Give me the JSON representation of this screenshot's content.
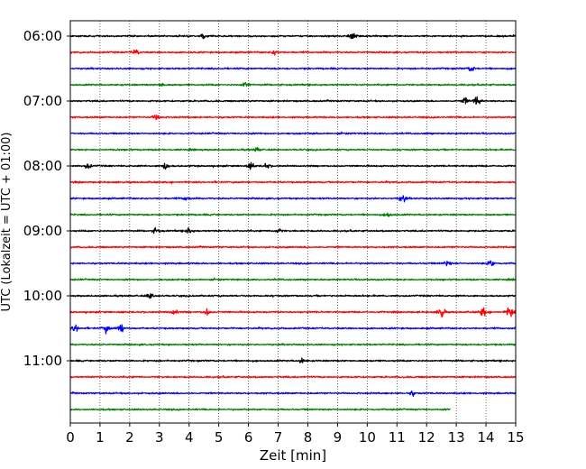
{
  "chart_data": {
    "type": "line",
    "xlabel": "Zeit  [min]",
    "ylabel": "UTC (Lokalzeit = UTC + 01:00)",
    "xlim": [
      0,
      15
    ],
    "x_ticks": [
      "0",
      "1",
      "2",
      "3",
      "4",
      "5",
      "6",
      "7",
      "8",
      "9",
      "10",
      "11",
      "12",
      "13",
      "14",
      "15"
    ],
    "y_tick_labels": [
      "06:00",
      "07:00",
      "08:00",
      "09:00",
      "10:00",
      "11:00"
    ],
    "grid": "vertical dotted",
    "series_colors": [
      "#000000",
      "#ff0000",
      "#0000ff",
      "#008000"
    ],
    "traces_per_hour": 4,
    "minutes_per_trace": 15,
    "start_time": "06:00",
    "trace_count": 24,
    "last_trace_end_min": 12.8,
    "events": [
      {
        "trace": 0,
        "t": 9.5,
        "amp": 1.2
      },
      {
        "trace": 0,
        "t": 4.5,
        "amp": 0.8
      },
      {
        "trace": 1,
        "t": 2.2,
        "amp": 0.9
      },
      {
        "trace": 1,
        "t": 6.9,
        "amp": 0.8
      },
      {
        "trace": 2,
        "t": 13.5,
        "amp": 0.9
      },
      {
        "trace": 3,
        "t": 5.9,
        "amp": 1.2
      },
      {
        "trace": 3,
        "t": 3.1,
        "amp": 0.7
      },
      {
        "trace": 4,
        "t": 13.7,
        "amp": 1.6
      },
      {
        "trace": 4,
        "t": 13.3,
        "amp": 0.9
      },
      {
        "trace": 5,
        "t": 2.9,
        "amp": 0.9
      },
      {
        "trace": 7,
        "t": 6.3,
        "amp": 0.7
      },
      {
        "trace": 8,
        "t": 3.2,
        "amp": 1.2
      },
      {
        "trace": 8,
        "t": 6.1,
        "amp": 1.0
      },
      {
        "trace": 8,
        "t": 0.6,
        "amp": 0.9
      },
      {
        "trace": 8,
        "t": 6.6,
        "amp": 0.8
      },
      {
        "trace": 10,
        "t": 11.2,
        "amp": 1.2
      },
      {
        "trace": 10,
        "t": 3.9,
        "amp": 0.7
      },
      {
        "trace": 11,
        "t": 10.7,
        "amp": 0.7
      },
      {
        "trace": 12,
        "t": 4.0,
        "amp": 1.0
      },
      {
        "trace": 12,
        "t": 2.9,
        "amp": 0.9
      },
      {
        "trace": 12,
        "t": 7.0,
        "amp": 0.8
      },
      {
        "trace": 14,
        "t": 14.2,
        "amp": 1.1
      },
      {
        "trace": 14,
        "t": 12.7,
        "amp": 0.8
      },
      {
        "trace": 16,
        "t": 2.7,
        "amp": 1.0
      },
      {
        "trace": 17,
        "t": 12.5,
        "amp": 1.8
      },
      {
        "trace": 17,
        "t": 14.8,
        "amp": 2.0
      },
      {
        "trace": 17,
        "t": 13.9,
        "amp": 1.5
      },
      {
        "trace": 17,
        "t": 3.5,
        "amp": 0.9
      },
      {
        "trace": 17,
        "t": 4.6,
        "amp": 1.0
      },
      {
        "trace": 18,
        "t": 1.7,
        "amp": 1.8
      },
      {
        "trace": 18,
        "t": 0.2,
        "amp": 1.2
      },
      {
        "trace": 18,
        "t": 1.2,
        "amp": 1.3
      },
      {
        "trace": 20,
        "t": 7.8,
        "amp": 0.8
      },
      {
        "trace": 22,
        "t": 11.5,
        "amp": 0.7
      }
    ]
  }
}
